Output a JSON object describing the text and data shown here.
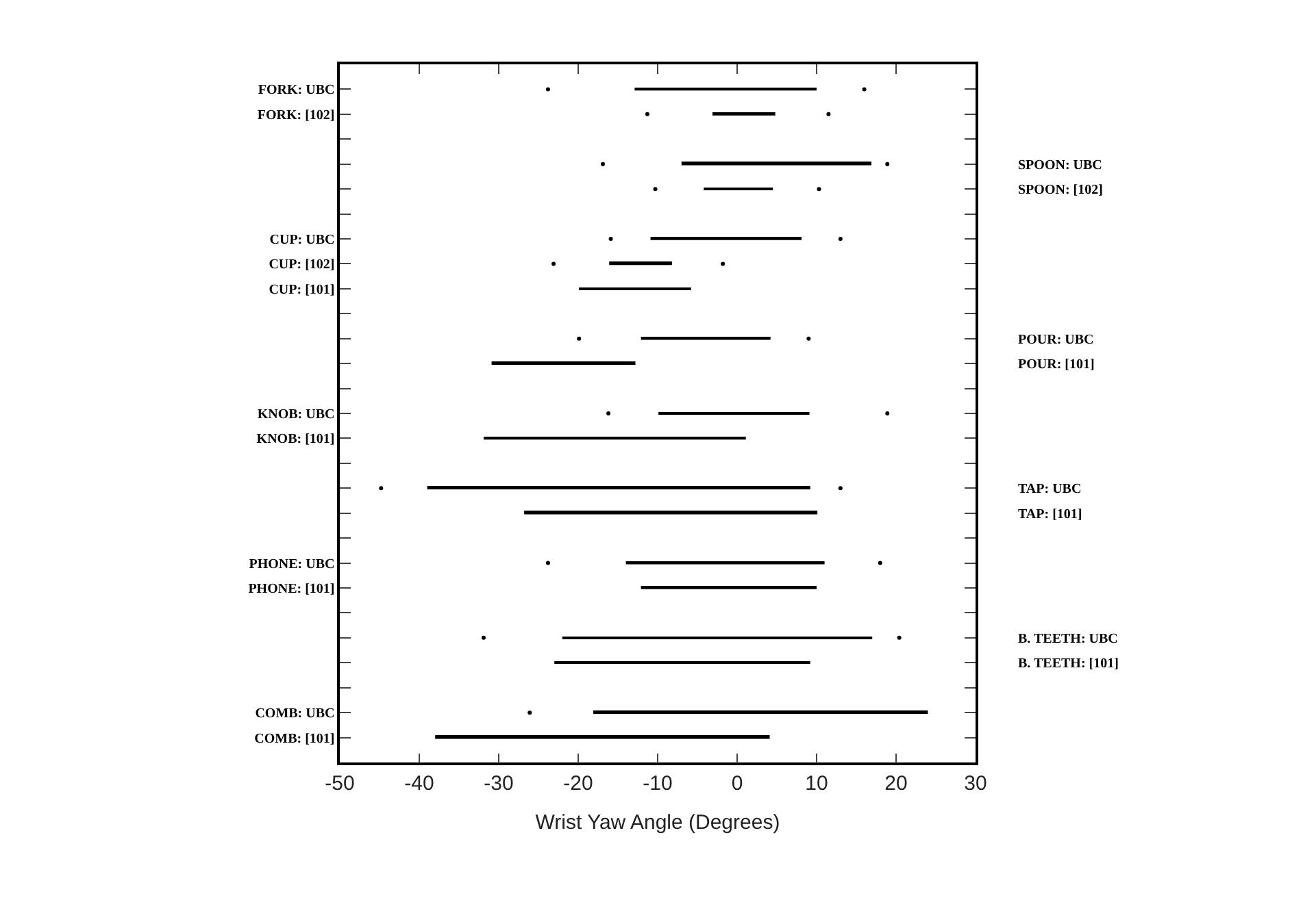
{
  "chart_data": {
    "type": "bar",
    "orientation": "horizontal",
    "xlabel": "Wrist Yaw Angle (Degrees)",
    "categories": [
      "FORK: UBC",
      "FORK: [102]",
      null,
      null,
      null,
      null,
      "CUP: UBC",
      "CUP: [102]",
      "CUP: [101]",
      null,
      null,
      null,
      null,
      "KNOB: UBC",
      "KNOB: [101]",
      null,
      null,
      null,
      null,
      "PHONE: UBC",
      "PHONE: [101]",
      null,
      null,
      null,
      null,
      "COMB: UBC",
      "COMB: [101]"
    ],
    "y2_categories": [
      null,
      null,
      null,
      "SPOON: UBC",
      "SPOON: [102]",
      null,
      null,
      null,
      null,
      null,
      "POUR: UBC",
      "POUR: [101]",
      null,
      null,
      null,
      null,
      "TAP: UBC",
      "TAP: [101]",
      null,
      null,
      null,
      null,
      "B. TEETH: UBC",
      "B. TEETH: [101]",
      null,
      null,
      null
    ],
    "series": [
      {
        "color": "#000000",
        "base": [
          -12.9,
          -3.1,
          null,
          -7.0,
          -4.2,
          null,
          -10.9,
          -16.1,
          -19.9,
          null,
          -12.1,
          -30.9,
          null,
          -9.9,
          -31.9,
          null,
          -39.0,
          -26.8,
          null,
          -14.0,
          -12.1,
          null,
          -22.0,
          -23.0,
          null,
          -18.1,
          -38.0
        ],
        "values": [
          22.9,
          7.9,
          null,
          23.9,
          8.7,
          null,
          19.0,
          7.9,
          14.1,
          null,
          16.3,
          18.1,
          null,
          19.0,
          33.0,
          null,
          48.2,
          36.9,
          null,
          25.0,
          22.1,
          null,
          39.0,
          32.2,
          null,
          42.1,
          42.1
        ]
      },
      {
        "type": "scatter",
        "color": "#000000",
        "values": [
          -23.8,
          -11.3,
          null,
          -16.9,
          -10.3,
          null,
          -15.9,
          -23.1,
          null,
          null,
          -19.9,
          null,
          null,
          -16.2,
          null,
          null,
          -44.8,
          null,
          null,
          -23.8,
          null,
          null,
          -31.9,
          null,
          null,
          -26.1,
          null
        ]
      },
      {
        "type": "scatter",
        "color": "#000000",
        "values": [
          16.0,
          11.5,
          null,
          18.9,
          10.3,
          null,
          13.0,
          -1.8,
          null,
          null,
          9.0,
          null,
          null,
          18.9,
          null,
          null,
          13.0,
          null,
          null,
          18.0,
          null,
          null,
          20.4,
          null,
          null,
          null,
          null
        ]
      }
    ],
    "marker": "circle",
    "xlim": [
      -50,
      30
    ],
    "xticks": [
      -50,
      -40,
      -30,
      -20,
      -10,
      0,
      10,
      20,
      30
    ]
  }
}
